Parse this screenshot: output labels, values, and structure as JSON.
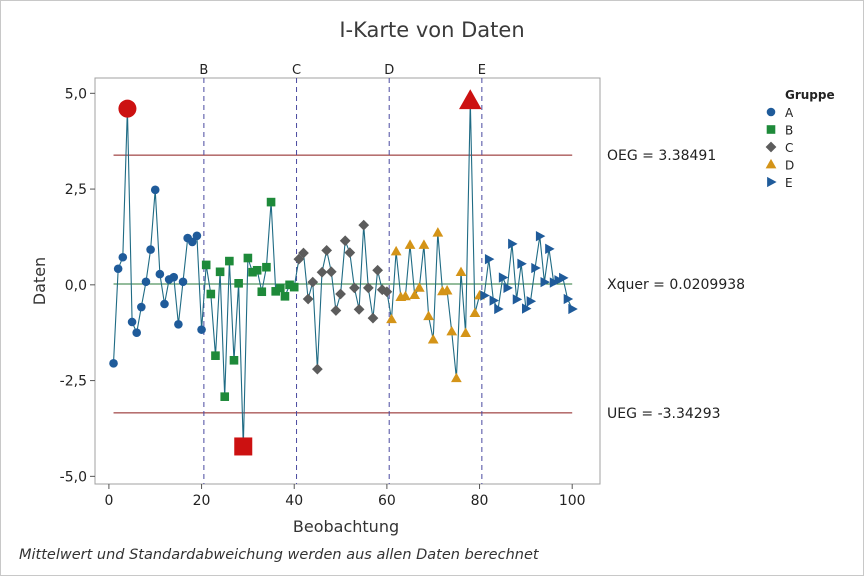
{
  "chart_data": {
    "type": "line",
    "title": "I-Karte von Daten",
    "xlabel": "Beobachtung",
    "ylabel": "Daten",
    "xlim": [
      -3,
      106
    ],
    "ylim": [
      -5.2,
      5.4
    ],
    "x_ticks": [
      0,
      20,
      40,
      60,
      80,
      100
    ],
    "y_ticks": [
      {
        "value": 5.0,
        "label": "5,0"
      },
      {
        "value": 2.5,
        "label": "2,5"
      },
      {
        "value": 0.0,
        "label": "0,0"
      },
      {
        "value": -2.5,
        "label": "-2,5"
      },
      {
        "value": -5.0,
        "label": "-5,0"
      }
    ],
    "grid": false,
    "limits": {
      "ucl": {
        "value": 3.38491,
        "label": "OEG = 3.38491"
      },
      "center": {
        "value": 0.0209938,
        "label": "Xquer = 0.0209938"
      },
      "lcl": {
        "value": -3.34293,
        "label": "UEG = -3.34293"
      }
    },
    "stage_dividers": [
      {
        "x": 20.5,
        "label": "B"
      },
      {
        "x": 40.5,
        "label": "C"
      },
      {
        "x": 60.5,
        "label": "D"
      },
      {
        "x": 80.5,
        "label": "E"
      }
    ],
    "legend": {
      "title": "Gruppe",
      "position": "right",
      "entries": [
        {
          "name": "A",
          "marker": "circle",
          "color": "#1f5b9a"
        },
        {
          "name": "B",
          "marker": "square",
          "color": "#1e8a3a"
        },
        {
          "name": "C",
          "marker": "diamond",
          "color": "#5c5c5c"
        },
        {
          "name": "D",
          "marker": "triangle-up",
          "color": "#d49418"
        },
        {
          "name": "E",
          "marker": "triangle-right",
          "color": "#1f5b9a"
        }
      ]
    },
    "line_color": "#1f6b84",
    "out_of_control_color": "#cc1111",
    "series": [
      {
        "name": "A",
        "x": [
          1,
          2,
          3,
          4,
          5,
          6,
          7,
          8,
          9,
          10,
          11,
          12,
          13,
          14,
          15,
          16,
          17,
          18,
          19,
          20
        ],
        "y": [
          -2.05,
          0.42,
          0.72,
          4.6,
          -0.97,
          -1.25,
          -0.58,
          0.08,
          0.92,
          2.48,
          0.28,
          -0.5,
          0.14,
          0.2,
          -1.03,
          0.08,
          1.22,
          1.12,
          1.28,
          -1.17
        ],
        "out_of_control": [
          4
        ]
      },
      {
        "name": "B",
        "x": [
          21,
          22,
          23,
          24,
          25,
          26,
          27,
          28,
          29,
          30,
          31,
          32,
          33,
          34,
          35,
          36,
          37,
          38,
          39,
          40
        ],
        "y": [
          0.52,
          -0.24,
          -1.85,
          0.34,
          -2.92,
          0.62,
          -1.97,
          0.04,
          -4.22,
          0.7,
          0.33,
          0.38,
          -0.18,
          0.46,
          2.16,
          -0.17,
          -0.08,
          -0.3,
          0.0,
          -0.06
        ],
        "out_of_control": [
          29
        ]
      },
      {
        "name": "C",
        "x": [
          41,
          42,
          43,
          44,
          45,
          46,
          47,
          48,
          49,
          50,
          51,
          52,
          53,
          54,
          55,
          56,
          57,
          58,
          59,
          60
        ],
        "y": [
          0.67,
          0.83,
          -0.37,
          0.07,
          -2.2,
          0.33,
          0.9,
          0.34,
          -0.67,
          -0.24,
          1.15,
          0.84,
          -0.08,
          -0.64,
          1.56,
          -0.08,
          -0.87,
          0.38,
          -0.13,
          -0.18
        ],
        "out_of_control": []
      },
      {
        "name": "D",
        "x": [
          61,
          62,
          63,
          64,
          65,
          66,
          67,
          68,
          69,
          70,
          71,
          72,
          73,
          74,
          75,
          76,
          77,
          78,
          79,
          80
        ],
        "y": [
          -0.9,
          0.87,
          -0.32,
          -0.3,
          1.04,
          -0.27,
          -0.08,
          1.04,
          -0.82,
          -1.43,
          1.36,
          -0.17,
          -0.15,
          -1.22,
          -2.44,
          0.33,
          -1.26,
          4.8,
          -0.74,
          -0.28
        ],
        "out_of_control": [
          78
        ]
      },
      {
        "name": "E",
        "x": [
          81,
          82,
          83,
          84,
          85,
          86,
          87,
          88,
          89,
          90,
          91,
          92,
          93,
          94,
          95,
          96,
          97,
          98,
          99,
          100
        ],
        "y": [
          -0.28,
          0.67,
          -0.41,
          -0.63,
          0.19,
          -0.08,
          1.07,
          -0.38,
          0.55,
          -0.62,
          -0.43,
          0.44,
          1.27,
          0.07,
          0.94,
          0.06,
          0.12,
          0.18,
          -0.37,
          -0.63
        ],
        "out_of_control": []
      }
    ]
  },
  "footnote": "Mittelwert und Standardabweichung werden aus allen Daten berechnet"
}
